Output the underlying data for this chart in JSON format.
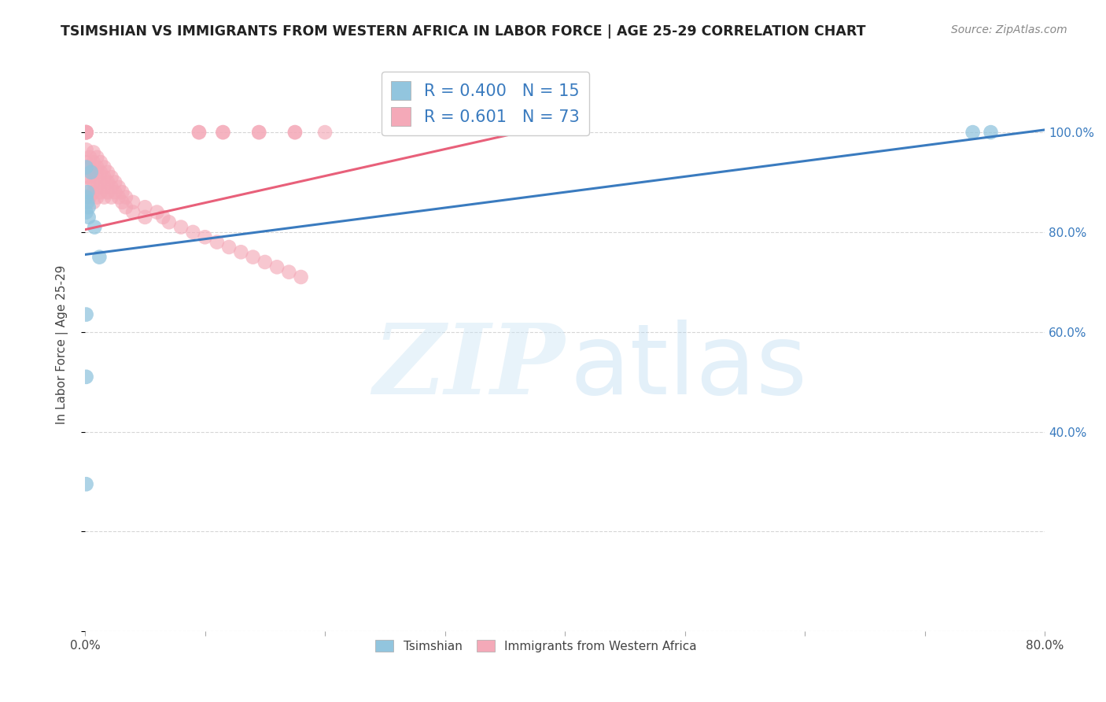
{
  "title": "TSIMSHIAN VS IMMIGRANTS FROM WESTERN AFRICA IN LABOR FORCE | AGE 25-29 CORRELATION CHART",
  "source": "Source: ZipAtlas.com",
  "ylabel": "In Labor Force | Age 25-29",
  "x_min": 0.0,
  "x_max": 0.8,
  "y_min": 0.0,
  "y_max": 1.15,
  "blue_R": 0.4,
  "blue_N": 15,
  "pink_R": 0.601,
  "pink_N": 73,
  "blue_color": "#92c5de",
  "pink_color": "#f4a9b8",
  "blue_line_color": "#3a7bbf",
  "pink_line_color": "#e8607a",
  "blue_scatter_x": [
    0.001,
    0.001,
    0.001,
    0.002,
    0.002,
    0.003,
    0.003,
    0.005,
    0.008,
    0.012,
    0.74,
    0.755,
    0.001,
    0.001,
    0.001
  ],
  "blue_scatter_y": [
    0.93,
    0.87,
    0.84,
    0.88,
    0.86,
    0.85,
    0.83,
    0.92,
    0.81,
    0.75,
    1.0,
    1.0,
    0.635,
    0.51,
    0.295
  ],
  "pink_scatter_x": [
    0.001,
    0.001,
    0.001,
    0.001,
    0.001,
    0.001,
    0.001,
    0.001,
    0.004,
    0.004,
    0.004,
    0.004,
    0.004,
    0.007,
    0.007,
    0.007,
    0.007,
    0.007,
    0.007,
    0.01,
    0.01,
    0.01,
    0.01,
    0.01,
    0.013,
    0.013,
    0.013,
    0.013,
    0.016,
    0.016,
    0.016,
    0.016,
    0.019,
    0.019,
    0.019,
    0.022,
    0.022,
    0.022,
    0.025,
    0.025,
    0.028,
    0.028,
    0.031,
    0.031,
    0.034,
    0.034,
    0.04,
    0.04,
    0.05,
    0.05,
    0.06,
    0.065,
    0.07,
    0.08,
    0.09,
    0.1,
    0.11,
    0.12,
    0.13,
    0.14,
    0.15,
    0.16,
    0.17,
    0.18,
    0.095,
    0.095,
    0.115,
    0.115,
    0.145,
    0.145,
    0.175,
    0.175,
    0.2
  ],
  "pink_scatter_y": [
    1.0,
    1.0,
    1.0,
    1.0,
    1.0,
    0.965,
    0.94,
    0.91,
    0.95,
    0.93,
    0.91,
    0.89,
    0.87,
    0.96,
    0.94,
    0.92,
    0.9,
    0.88,
    0.86,
    0.95,
    0.93,
    0.91,
    0.89,
    0.87,
    0.94,
    0.92,
    0.9,
    0.88,
    0.93,
    0.91,
    0.89,
    0.87,
    0.92,
    0.9,
    0.88,
    0.91,
    0.89,
    0.87,
    0.9,
    0.88,
    0.89,
    0.87,
    0.88,
    0.86,
    0.87,
    0.85,
    0.86,
    0.84,
    0.85,
    0.83,
    0.84,
    0.83,
    0.82,
    0.81,
    0.8,
    0.79,
    0.78,
    0.77,
    0.76,
    0.75,
    0.74,
    0.73,
    0.72,
    0.71,
    1.0,
    1.0,
    1.0,
    1.0,
    1.0,
    1.0,
    1.0,
    1.0,
    1.0
  ],
  "blue_line_x": [
    0.0,
    0.8
  ],
  "blue_line_y": [
    0.755,
    1.005
  ],
  "pink_line_x": [
    0.0,
    0.4
  ],
  "pink_line_y": [
    0.805,
    1.02
  ],
  "right_y_ticks": [
    0.4,
    0.6,
    0.8,
    1.0
  ],
  "right_y_tick_labels": [
    "40.0%",
    "60.0%",
    "80.0%",
    "100.0%"
  ],
  "background_color": "#ffffff",
  "grid_color": "#cccccc",
  "right_axis_color": "#3a7bbf",
  "title_color": "#222222",
  "label_color": "#444444"
}
